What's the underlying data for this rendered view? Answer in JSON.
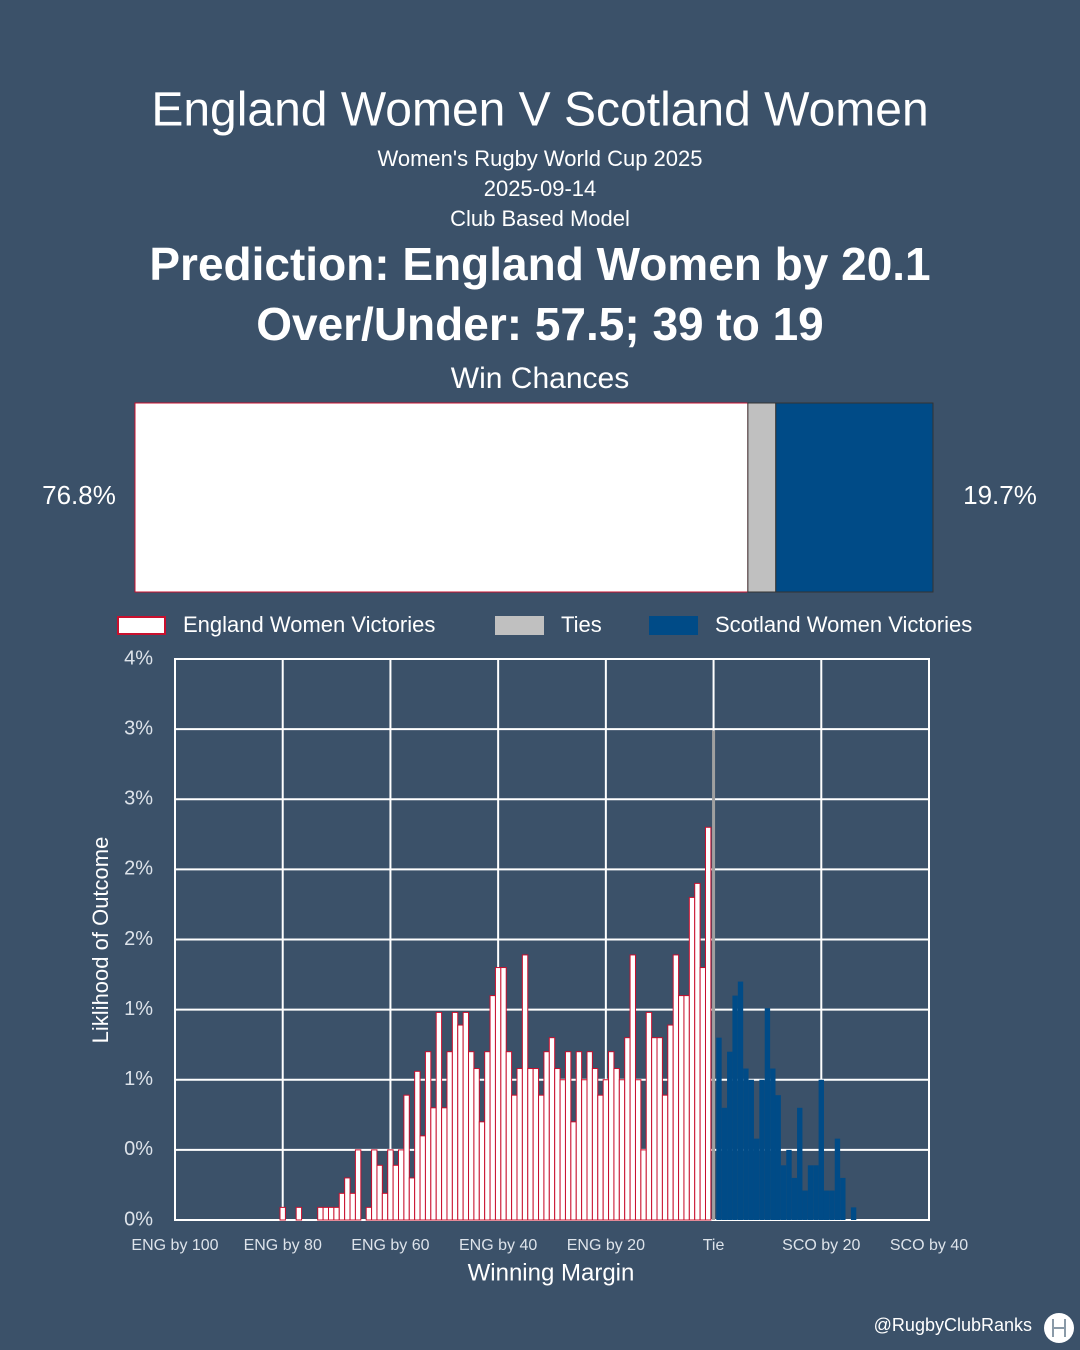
{
  "header": {
    "title": "England Women V Scotland Women",
    "subtitle": [
      "Women's Rugby World Cup 2025",
      "2025-09-14",
      "Club Based Model"
    ],
    "prediction": "Prediction: England Women by 20.1",
    "over_under": "Over/Under: 57.5; 39 to 19"
  },
  "footer": {
    "handle": "@RugbyClubRanks"
  },
  "chart_data": [
    {
      "type": "stacked_bar",
      "title": "Win Chances",
      "xlim": [
        0,
        100
      ],
      "series": [
        {
          "name": "England Women Victories",
          "color": "#ffffff",
          "edge": "#c8102e",
          "values": [
            76.8
          ],
          "value_labels": [
            "76.8%"
          ]
        },
        {
          "name": "Ties",
          "color": "#c0c0c0",
          "values": [
            3.5
          ]
        },
        {
          "name": "Scotland Women Victories",
          "color": "#004b87",
          "values": [
            19.7
          ],
          "value_labels": [
            "19.7%"
          ]
        }
      ]
    },
    {
      "type": "bar",
      "x_label": "Winning Margin",
      "y_label": "Liklihood of Outcome",
      "xlim": [
        -100,
        40
      ],
      "ylim": [
        0,
        4
      ],
      "grid": true,
      "xticks": [
        {
          "value": -100,
          "label": "ENG by 100"
        },
        {
          "value": -80,
          "label": "ENG by 80"
        },
        {
          "value": -60,
          "label": "ENG by 60"
        },
        {
          "value": -40,
          "label": "ENG by 40"
        },
        {
          "value": -20,
          "label": "ENG by 20"
        },
        {
          "value": 0,
          "label": "Tie"
        },
        {
          "value": 20,
          "label": "SCO by 20"
        },
        {
          "value": 40,
          "label": "SCO by 40"
        }
      ],
      "yticks": [
        {
          "value": 0,
          "label": "0%"
        },
        {
          "value": 0.5,
          "label": "0%"
        },
        {
          "value": 1,
          "label": "1%"
        },
        {
          "value": 1.5,
          "label": "1%"
        },
        {
          "value": 2,
          "label": "2%"
        },
        {
          "value": 2.5,
          "label": "2%"
        },
        {
          "value": 3,
          "label": "3%"
        },
        {
          "value": 3.5,
          "label": "3%"
        },
        {
          "value": 4,
          "label": "4%"
        }
      ],
      "series": [
        {
          "color": "#ffffff",
          "edge": "#c8102e",
          "x": [
            -80,
            -79,
            -78,
            -77,
            -76,
            -75,
            -74,
            -73,
            -72,
            -71,
            -70,
            -69,
            -68,
            -67,
            -66,
            -65,
            -64,
            -63,
            -62,
            -61,
            -60,
            -59,
            -58,
            -57,
            -56,
            -55,
            -54,
            -53,
            -52,
            -51,
            -50,
            -49,
            -48,
            -47,
            -46,
            -45,
            -44,
            -43,
            -42,
            -41,
            -40,
            -39,
            -38,
            -37,
            -36,
            -35,
            -34,
            -33,
            -32,
            -31,
            -30,
            -29,
            -28,
            -27,
            -26,
            -25,
            -24,
            -23,
            -22,
            -21,
            -20,
            -19,
            -18,
            -17,
            -16,
            -15,
            -14,
            -13,
            -12,
            -11,
            -10,
            -9,
            -8,
            -7,
            -6,
            -5,
            -4,
            -3,
            -2,
            -1
          ],
          "values": [
            0.09,
            0,
            0,
            0.09,
            0,
            0,
            0,
            0.09,
            0.09,
            0.09,
            0.09,
            0.19,
            0.3,
            0.19,
            0.5,
            0,
            0.09,
            0.5,
            0.39,
            0.19,
            0.5,
            0.39,
            0.5,
            0.89,
            0.3,
            1.06,
            0.6,
            1.2,
            0.8,
            1.48,
            0.8,
            1.2,
            1.48,
            1.39,
            1.48,
            1.2,
            1.08,
            0.7,
            1.2,
            1.6,
            1.8,
            1.8,
            1.2,
            0.89,
            1.08,
            1.89,
            1.08,
            1.08,
            0.89,
            1.2,
            1.3,
            1.08,
            1.0,
            1.2,
            0.7,
            1.2,
            1.0,
            1.2,
            1.08,
            0.89,
            1.0,
            1.2,
            1.08,
            1.0,
            1.3,
            1.89,
            1.0,
            0.5,
            1.48,
            1.3,
            1.3,
            0.89,
            1.39,
            1.89,
            1.6,
            1.6,
            2.3,
            2.4,
            1.8,
            2.8
          ]
        },
        {
          "color": "#a0a0a0",
          "x": [
            0
          ],
          "values": [
            3.49
          ],
          "narrow": true
        },
        {
          "color": "#004b87",
          "x": [
            1,
            2,
            3,
            4,
            5,
            6,
            7,
            8,
            9,
            10,
            11,
            12,
            13,
            14,
            15,
            16,
            17,
            18,
            19,
            20,
            21,
            22,
            23,
            24,
            25,
            26
          ],
          "values": [
            1.3,
            0.8,
            1.2,
            1.6,
            1.7,
            1.08,
            1.0,
            0.58,
            1.0,
            1.51,
            1.08,
            0.89,
            0.39,
            0.5,
            0.3,
            0.8,
            0.21,
            0.39,
            0.39,
            1.0,
            0.21,
            0.21,
            0.58,
            0.3,
            0,
            0.09
          ]
        }
      ]
    }
  ]
}
